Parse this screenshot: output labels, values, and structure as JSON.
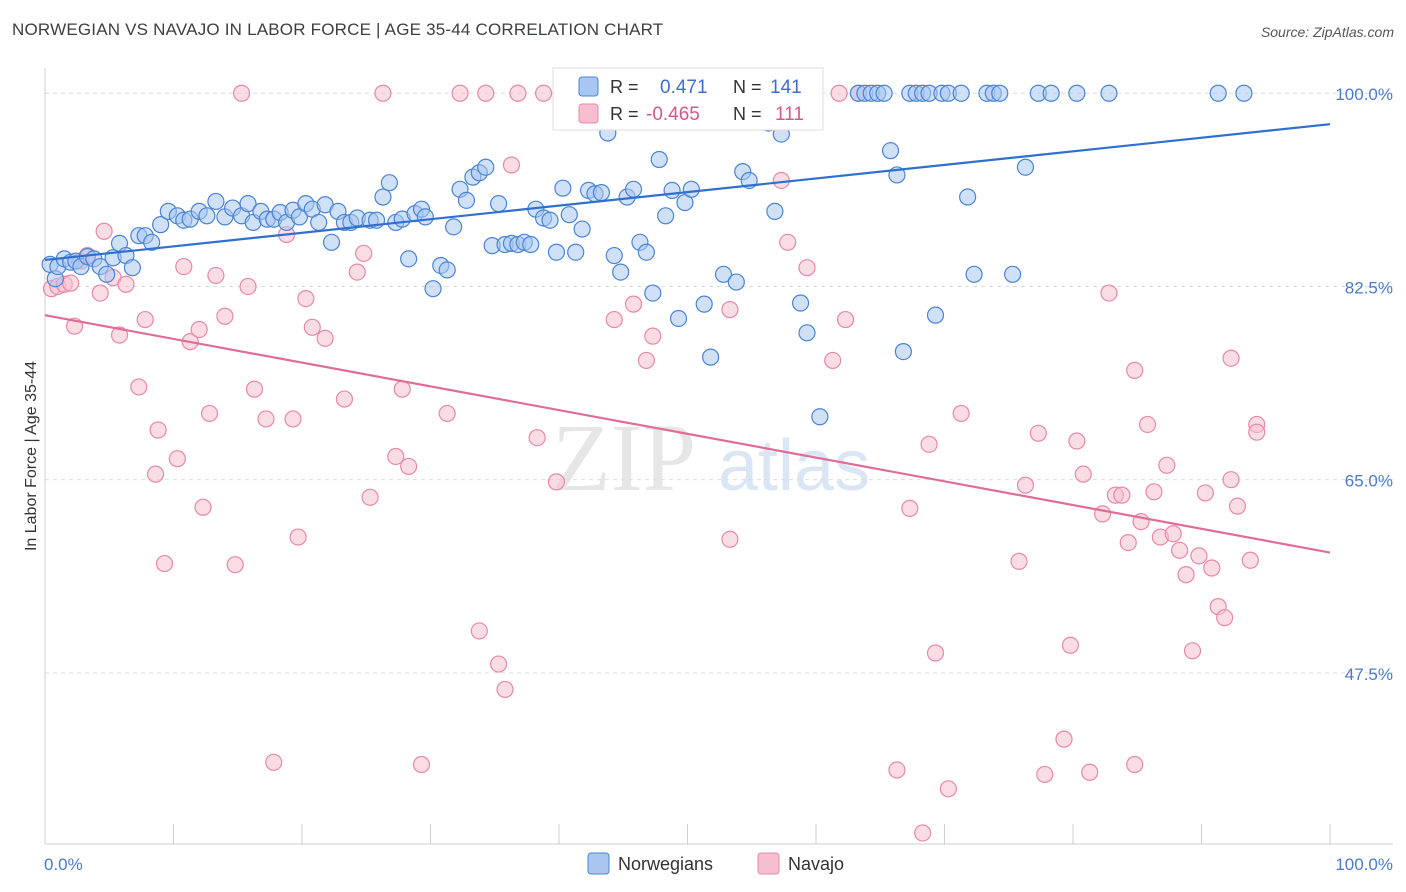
{
  "header": {
    "title": "NORWEGIAN VS NAVAJO IN LABOR FORCE | AGE 35-44 CORRELATION CHART",
    "source": "Source: ZipAtlas.com"
  },
  "colors": {
    "blue_fill": "#a8c6f0",
    "blue_stroke": "#4a84d4",
    "blue_line": "#2f6fd0",
    "pink_fill": "#f6bfd0",
    "pink_stroke": "#e888a8",
    "pink_line": "#e06c98",
    "grid": "#dcdcdc",
    "axis_text": "#4a7bc8"
  },
  "watermark": {
    "zip": "ZIP",
    "atlas": "atlas"
  },
  "legend": {
    "rows": [
      {
        "r_label": "R =",
        "r_value": "0.471",
        "n_label": "N =",
        "n_value": "141"
      },
      {
        "r_label": "R =",
        "r_value": "-0.465",
        "n_label": "N =",
        "n_value": "111"
      }
    ]
  },
  "chart_data": {
    "type": "scatter",
    "title": "NORWEGIAN VS NAVAJO IN LABOR FORCE | AGE 35-44 CORRELATION CHART",
    "xlabel": "",
    "ylabel": "In Labor Force | Age 35-44",
    "xlim": [
      0,
      100
    ],
    "ylim": [
      32,
      101.5
    ],
    "x_tick_labels": [
      "0.0%",
      "100.0%"
    ],
    "y_ticks": [
      47.5,
      65.0,
      82.5,
      100.0
    ],
    "y_tick_labels": [
      "47.5%",
      "65.0%",
      "82.5%",
      "100.0%"
    ],
    "grid": true,
    "legend_position": "top-center",
    "series": [
      {
        "name": "Norwegians",
        "r": 0.471,
        "n": 141,
        "trend": {
          "x": [
            0,
            100
          ],
          "y": [
            84.9,
            97.2
          ]
        },
        "points": [
          [
            0.4,
            84.5
          ],
          [
            0.8,
            83.2
          ],
          [
            1.0,
            84.3
          ],
          [
            1.5,
            85.0
          ],
          [
            2.0,
            84.7
          ],
          [
            2.4,
            84.8
          ],
          [
            2.8,
            84.3
          ],
          [
            3.3,
            85.2
          ],
          [
            3.8,
            85.0
          ],
          [
            4.3,
            84.3
          ],
          [
            4.8,
            83.6
          ],
          [
            5.3,
            85.1
          ],
          [
            5.8,
            86.4
          ],
          [
            6.3,
            85.3
          ],
          [
            6.8,
            84.2
          ],
          [
            7.3,
            87.1
          ],
          [
            7.8,
            87.1
          ],
          [
            8.3,
            86.5
          ],
          [
            9.0,
            88.1
          ],
          [
            9.6,
            89.3
          ],
          [
            10.3,
            88.9
          ],
          [
            10.8,
            88.5
          ],
          [
            11.3,
            88.6
          ],
          [
            12.0,
            89.3
          ],
          [
            12.6,
            88.9
          ],
          [
            13.3,
            90.2
          ],
          [
            14.0,
            88.8
          ],
          [
            14.6,
            89.6
          ],
          [
            15.3,
            88.9
          ],
          [
            15.8,
            90.0
          ],
          [
            16.2,
            88.3
          ],
          [
            16.8,
            89.3
          ],
          [
            17.3,
            88.6
          ],
          [
            17.8,
            88.6
          ],
          [
            18.3,
            89.2
          ],
          [
            18.8,
            88.3
          ],
          [
            19.3,
            89.4
          ],
          [
            19.8,
            88.8
          ],
          [
            20.3,
            90.0
          ],
          [
            20.8,
            89.5
          ],
          [
            21.3,
            88.3
          ],
          [
            21.8,
            89.9
          ],
          [
            22.3,
            86.5
          ],
          [
            22.8,
            89.3
          ],
          [
            23.3,
            88.3
          ],
          [
            23.8,
            88.3
          ],
          [
            24.3,
            88.7
          ],
          [
            25.3,
            88.5
          ],
          [
            25.8,
            88.5
          ],
          [
            26.3,
            90.6
          ],
          [
            26.8,
            91.9
          ],
          [
            27.3,
            88.3
          ],
          [
            27.8,
            88.6
          ],
          [
            28.3,
            85.0
          ],
          [
            28.8,
            89.1
          ],
          [
            29.3,
            89.5
          ],
          [
            29.6,
            88.8
          ],
          [
            30.2,
            82.3
          ],
          [
            30.8,
            84.4
          ],
          [
            31.3,
            84.0
          ],
          [
            31.8,
            87.9
          ],
          [
            32.3,
            91.3
          ],
          [
            32.8,
            90.3
          ],
          [
            33.3,
            92.4
          ],
          [
            33.8,
            92.8
          ],
          [
            34.3,
            93.3
          ],
          [
            34.8,
            86.2
          ],
          [
            35.3,
            90.0
          ],
          [
            35.8,
            86.3
          ],
          [
            36.3,
            86.4
          ],
          [
            36.8,
            86.3
          ],
          [
            37.3,
            86.5
          ],
          [
            37.8,
            86.3
          ],
          [
            38.2,
            89.5
          ],
          [
            38.8,
            88.7
          ],
          [
            39.3,
            88.5
          ],
          [
            39.8,
            85.6
          ],
          [
            40.3,
            91.4
          ],
          [
            40.8,
            89.0
          ],
          [
            41.3,
            85.6
          ],
          [
            41.8,
            87.7
          ],
          [
            42.3,
            91.2
          ],
          [
            42.8,
            90.9
          ],
          [
            43.3,
            91.0
          ],
          [
            43.8,
            96.4
          ],
          [
            44.3,
            85.3
          ],
          [
            44.8,
            83.8
          ],
          [
            45.3,
            90.6
          ],
          [
            45.8,
            91.3
          ],
          [
            46.3,
            86.5
          ],
          [
            46.8,
            85.6
          ],
          [
            47.3,
            81.9
          ],
          [
            47.8,
            94.0
          ],
          [
            48.3,
            88.9
          ],
          [
            48.8,
            91.2
          ],
          [
            49.3,
            79.6
          ],
          [
            49.8,
            90.1
          ],
          [
            50.3,
            91.3
          ],
          [
            51.3,
            80.9
          ],
          [
            51.8,
            76.1
          ],
          [
            52.8,
            83.6
          ],
          [
            53.8,
            82.9
          ],
          [
            54.3,
            100.0
          ],
          [
            54.3,
            92.9
          ],
          [
            54.8,
            92.1
          ],
          [
            55.3,
            100.0
          ],
          [
            55.8,
            100.0
          ],
          [
            56.3,
            97.3
          ],
          [
            56.8,
            89.3
          ],
          [
            57.3,
            96.3
          ],
          [
            58.3,
            100.0
          ],
          [
            58.8,
            81.0
          ],
          [
            59.3,
            78.3
          ],
          [
            60.3,
            70.7
          ],
          [
            63.3,
            100.0
          ],
          [
            63.8,
            100.0
          ],
          [
            64.3,
            100.0
          ],
          [
            64.8,
            100.0
          ],
          [
            65.3,
            100.0
          ],
          [
            65.8,
            94.8
          ],
          [
            66.3,
            92.6
          ],
          [
            66.8,
            76.6
          ],
          [
            67.3,
            100.0
          ],
          [
            67.8,
            100.0
          ],
          [
            68.3,
            100.0
          ],
          [
            68.8,
            100.0
          ],
          [
            69.3,
            79.9
          ],
          [
            69.8,
            100.0
          ],
          [
            70.3,
            100.0
          ],
          [
            71.3,
            100.0
          ],
          [
            71.8,
            90.6
          ],
          [
            72.3,
            83.6
          ],
          [
            73.3,
            100.0
          ],
          [
            73.8,
            100.0
          ],
          [
            74.3,
            100.0
          ],
          [
            75.3,
            83.6
          ],
          [
            76.3,
            93.3
          ],
          [
            77.3,
            100.0
          ],
          [
            78.3,
            100.0
          ],
          [
            80.3,
            100.0
          ],
          [
            82.8,
            100.0
          ],
          [
            91.3,
            100.0
          ],
          [
            93.3,
            100.0
          ]
        ]
      },
      {
        "name": "Navajo",
        "r": -0.465,
        "n": 111,
        "trend": {
          "x": [
            0,
            100
          ],
          "y": [
            79.9,
            58.4
          ]
        },
        "points": [
          [
            0.5,
            82.3
          ],
          [
            1.0,
            82.5
          ],
          [
            1.5,
            82.7
          ],
          [
            2.0,
            82.8
          ],
          [
            2.3,
            78.9
          ],
          [
            2.8,
            84.8
          ],
          [
            3.3,
            85.3
          ],
          [
            4.3,
            81.9
          ],
          [
            4.6,
            87.5
          ],
          [
            5.3,
            83.3
          ],
          [
            5.8,
            78.1
          ],
          [
            6.3,
            82.7
          ],
          [
            7.3,
            73.4
          ],
          [
            7.8,
            79.5
          ],
          [
            8.6,
            65.5
          ],
          [
            8.8,
            69.5
          ],
          [
            9.3,
            57.4
          ],
          [
            10.3,
            66.9
          ],
          [
            10.8,
            84.3
          ],
          [
            11.3,
            77.5
          ],
          [
            12.0,
            78.6
          ],
          [
            12.3,
            62.5
          ],
          [
            12.8,
            71.0
          ],
          [
            13.3,
            83.5
          ],
          [
            14.0,
            79.8
          ],
          [
            14.8,
            57.3
          ],
          [
            15.3,
            100.0
          ],
          [
            15.8,
            82.5
          ],
          [
            16.3,
            73.2
          ],
          [
            17.2,
            70.5
          ],
          [
            17.8,
            39.4
          ],
          [
            18.8,
            87.2
          ],
          [
            19.3,
            70.5
          ],
          [
            19.7,
            59.8
          ],
          [
            20.3,
            81.4
          ],
          [
            20.8,
            78.8
          ],
          [
            21.8,
            77.8
          ],
          [
            23.3,
            72.3
          ],
          [
            24.3,
            83.8
          ],
          [
            24.8,
            85.5
          ],
          [
            25.3,
            63.4
          ],
          [
            26.3,
            100.0
          ],
          [
            27.3,
            67.1
          ],
          [
            27.8,
            73.2
          ],
          [
            28.3,
            66.2
          ],
          [
            29.3,
            39.2
          ],
          [
            31.3,
            71.0
          ],
          [
            32.3,
            100.0
          ],
          [
            33.8,
            51.3
          ],
          [
            34.3,
            100.0
          ],
          [
            35.3,
            48.3
          ],
          [
            35.8,
            46.0
          ],
          [
            36.3,
            93.5
          ],
          [
            36.8,
            100.0
          ],
          [
            38.3,
            68.8
          ],
          [
            38.8,
            100.0
          ],
          [
            39.8,
            64.8
          ],
          [
            40.3,
            100.0
          ],
          [
            41.8,
            100.0
          ],
          [
            44.3,
            79.5
          ],
          [
            45.8,
            80.9
          ],
          [
            46.3,
            100.0
          ],
          [
            46.8,
            75.8
          ],
          [
            47.3,
            78.0
          ],
          [
            48.3,
            100.0
          ],
          [
            49.8,
            100.0
          ],
          [
            51.8,
            100.0
          ],
          [
            53.3,
            59.6
          ],
          [
            53.3,
            80.4
          ],
          [
            56.3,
            100.0
          ],
          [
            57.3,
            92.1
          ],
          [
            57.8,
            86.5
          ],
          [
            59.3,
            84.2
          ],
          [
            61.3,
            75.8
          ],
          [
            61.8,
            100.0
          ],
          [
            62.3,
            79.5
          ],
          [
            63.3,
            100.0
          ],
          [
            66.3,
            38.7
          ],
          [
            67.3,
            62.4
          ],
          [
            68.3,
            33.0
          ],
          [
            68.8,
            68.2
          ],
          [
            69.3,
            49.3
          ],
          [
            70.3,
            37.0
          ],
          [
            71.3,
            71.0
          ],
          [
            75.8,
            57.6
          ],
          [
            76.3,
            64.5
          ],
          [
            77.3,
            69.2
          ],
          [
            77.8,
            38.3
          ],
          [
            79.3,
            41.5
          ],
          [
            79.8,
            50.0
          ],
          [
            80.3,
            68.5
          ],
          [
            80.8,
            65.5
          ],
          [
            81.3,
            38.5
          ],
          [
            82.3,
            61.9
          ],
          [
            82.8,
            81.9
          ],
          [
            83.3,
            63.6
          ],
          [
            83.8,
            63.6
          ],
          [
            84.3,
            59.3
          ],
          [
            84.8,
            39.2
          ],
          [
            84.8,
            74.9
          ],
          [
            85.3,
            61.2
          ],
          [
            85.8,
            70.0
          ],
          [
            86.3,
            63.9
          ],
          [
            86.8,
            59.8
          ],
          [
            87.3,
            66.3
          ],
          [
            87.8,
            60.1
          ],
          [
            88.3,
            58.6
          ],
          [
            88.8,
            56.4
          ],
          [
            89.3,
            49.5
          ],
          [
            89.8,
            58.1
          ],
          [
            90.3,
            63.8
          ],
          [
            90.8,
            57.0
          ],
          [
            91.3,
            53.5
          ],
          [
            91.8,
            52.5
          ],
          [
            92.3,
            65.0
          ],
          [
            92.3,
            76.0
          ],
          [
            92.8,
            62.6
          ],
          [
            93.8,
            57.7
          ],
          [
            94.3,
            70.0
          ],
          [
            94.3,
            69.3
          ]
        ]
      }
    ]
  },
  "bottom_legend": {
    "items": [
      {
        "label": "Norwegians"
      },
      {
        "label": "Navajo"
      }
    ]
  }
}
